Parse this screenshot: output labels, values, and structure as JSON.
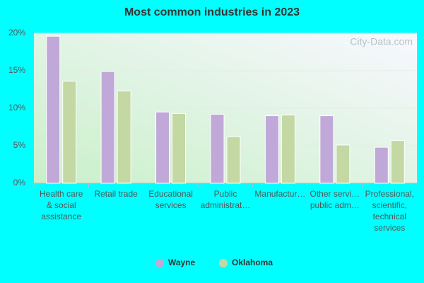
{
  "chart_data": {
    "type": "bar",
    "title": "Most common industries in 2023",
    "watermark": "City-Data.com",
    "categories": [
      "Health care\n& social\nassistance",
      "Retail trade",
      "Educational\nservices",
      "Public\nadministrat…",
      "Manufactur…",
      "Other servi…\npublic adm…",
      "Professional,\nscientific,\ntechnical\nservices"
    ],
    "series": [
      {
        "name": "Wayne",
        "color": "#c0a8d8",
        "values": [
          19.6,
          14.9,
          9.5,
          9.2,
          9.0,
          9.0,
          4.8
        ]
      },
      {
        "name": "Oklahoma",
        "color": "#c4d8a4",
        "values": [
          13.6,
          12.3,
          9.3,
          6.2,
          9.1,
          5.1,
          5.7
        ]
      }
    ],
    "ylim": [
      0,
      20
    ],
    "yticks": [
      {
        "value": 0,
        "label": "0%"
      },
      {
        "value": 5,
        "label": "5%"
      },
      {
        "value": 10,
        "label": "10%"
      },
      {
        "value": 15,
        "label": "15%"
      },
      {
        "value": 20,
        "label": "20%"
      }
    ],
    "grid": true,
    "legend": "bottom"
  }
}
